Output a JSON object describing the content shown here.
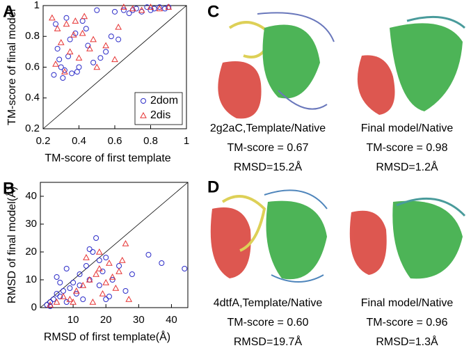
{
  "chart_data": [
    {
      "type": "scatter",
      "panel_label": "A",
      "xlabel": "TM-score of first template",
      "ylabel": "TM-score of final model",
      "xlim": [
        0.2,
        1
      ],
      "ylim": [
        0.2,
        1
      ],
      "xticks": [
        0.2,
        0.4,
        0.6,
        0.8,
        1
      ],
      "yticks": [
        0.2,
        0.4,
        0.6,
        0.8,
        1
      ],
      "legend": "lower right",
      "series": [
        {
          "name": "2dom",
          "color": "#2c2cc8",
          "marker": "circle",
          "x": [
            0.26,
            0.28,
            0.3,
            0.32,
            0.34,
            0.36,
            0.38,
            0.4,
            0.42,
            0.45,
            0.48,
            0.5,
            0.52,
            0.55,
            0.58,
            0.6,
            0.62,
            0.65,
            0.68,
            0.7,
            0.72,
            0.75,
            0.78,
            0.8,
            0.82,
            0.85,
            0.88,
            0.9,
            0.27,
            0.31,
            0.35,
            0.39,
            0.44,
            0.29,
            0.33
          ],
          "values": [
            0.55,
            0.72,
            0.6,
            0.58,
            0.67,
            0.56,
            0.82,
            0.6,
            0.9,
            0.74,
            0.63,
            0.97,
            0.66,
            0.7,
            0.8,
            0.96,
            0.78,
            0.97,
            0.95,
            0.97,
            0.98,
            0.96,
            0.99,
            0.97,
            0.98,
            0.99,
            0.98,
            0.99,
            0.88,
            0.53,
            0.78,
            0.57,
            0.85,
            0.65,
            0.92
          ]
        },
        {
          "name": "2dis",
          "color": "#e63232",
          "marker": "triangle",
          "x": [
            0.25,
            0.28,
            0.3,
            0.33,
            0.35,
            0.37,
            0.4,
            0.43,
            0.46,
            0.5,
            0.55,
            0.6,
            0.65,
            0.7,
            0.75,
            0.8,
            0.85,
            0.9,
            0.32,
            0.38,
            0.27,
            0.42,
            0.48,
            0.62
          ],
          "values": [
            0.92,
            0.85,
            0.76,
            0.88,
            0.7,
            0.81,
            0.66,
            0.93,
            0.72,
            0.6,
            0.74,
            0.65,
            0.99,
            0.98,
            0.97,
            0.99,
            0.98,
            0.99,
            0.57,
            0.9,
            0.62,
            0.82,
            0.78,
            0.86
          ]
        }
      ]
    },
    {
      "type": "scatter",
      "panel_label": "B",
      "xlabel": "RMSD of first template(Å)",
      "ylabel": "RMSD of final model(Å)",
      "xlim": [
        0,
        45
      ],
      "ylim": [
        0,
        45
      ],
      "xticks": [
        10,
        20,
        30,
        40
      ],
      "yticks": [
        0,
        10,
        20,
        30,
        40
      ],
      "series": [
        {
          "name": "2dom",
          "color": "#2c2cc8",
          "marker": "circle",
          "x": [
            2,
            3,
            4,
            5,
            6,
            7,
            8,
            9,
            10,
            11,
            12,
            13,
            14,
            15,
            16,
            17,
            18,
            19,
            20,
            21,
            22,
            24,
            26,
            28,
            33,
            37,
            44,
            5,
            8,
            12,
            15,
            18,
            20,
            3,
            6
          ],
          "values": [
            1,
            2,
            3,
            5,
            4,
            6,
            2,
            7,
            9,
            5,
            12,
            3,
            15,
            10,
            20,
            25,
            8,
            13,
            18,
            4,
            10,
            15,
            6,
            12,
            19,
            16,
            14,
            11,
            14,
            8,
            21,
            17,
            3,
            0.5,
            9
          ]
        },
        {
          "name": "2dis",
          "color": "#e63232",
          "marker": "triangle",
          "x": [
            3,
            5,
            7,
            9,
            11,
            13,
            15,
            16,
            17,
            18,
            19,
            20,
            21,
            22,
            23,
            24,
            25,
            26,
            14,
            10,
            27,
            18
          ],
          "values": [
            1,
            2,
            4,
            3,
            6,
            8,
            10,
            2,
            12,
            14,
            5,
            9,
            16,
            11,
            7,
            13,
            17,
            23,
            18,
            2,
            3,
            20
          ]
        }
      ]
    }
  ],
  "panels": [
    {
      "label": "C",
      "structures": [
        {
          "caption": "2g2aC,Template/Native",
          "tm": "TM-score = 0.67",
          "rmsd": "RMSD=15.2Å"
        },
        {
          "caption": "Final model/Native",
          "tm": "TM-score = 0.98",
          "rmsd": "RMSD=1.2Å"
        }
      ]
    },
    {
      "label": "D",
      "structures": [
        {
          "caption": "4dtfA,Template/Native",
          "tm": "TM-score = 0.60",
          "rmsd": "RMSD=19.7Å"
        },
        {
          "caption": "Final model/Native",
          "tm": "TM-score = 0.96",
          "rmsd": "RMSD=1.3Å"
        }
      ]
    }
  ]
}
